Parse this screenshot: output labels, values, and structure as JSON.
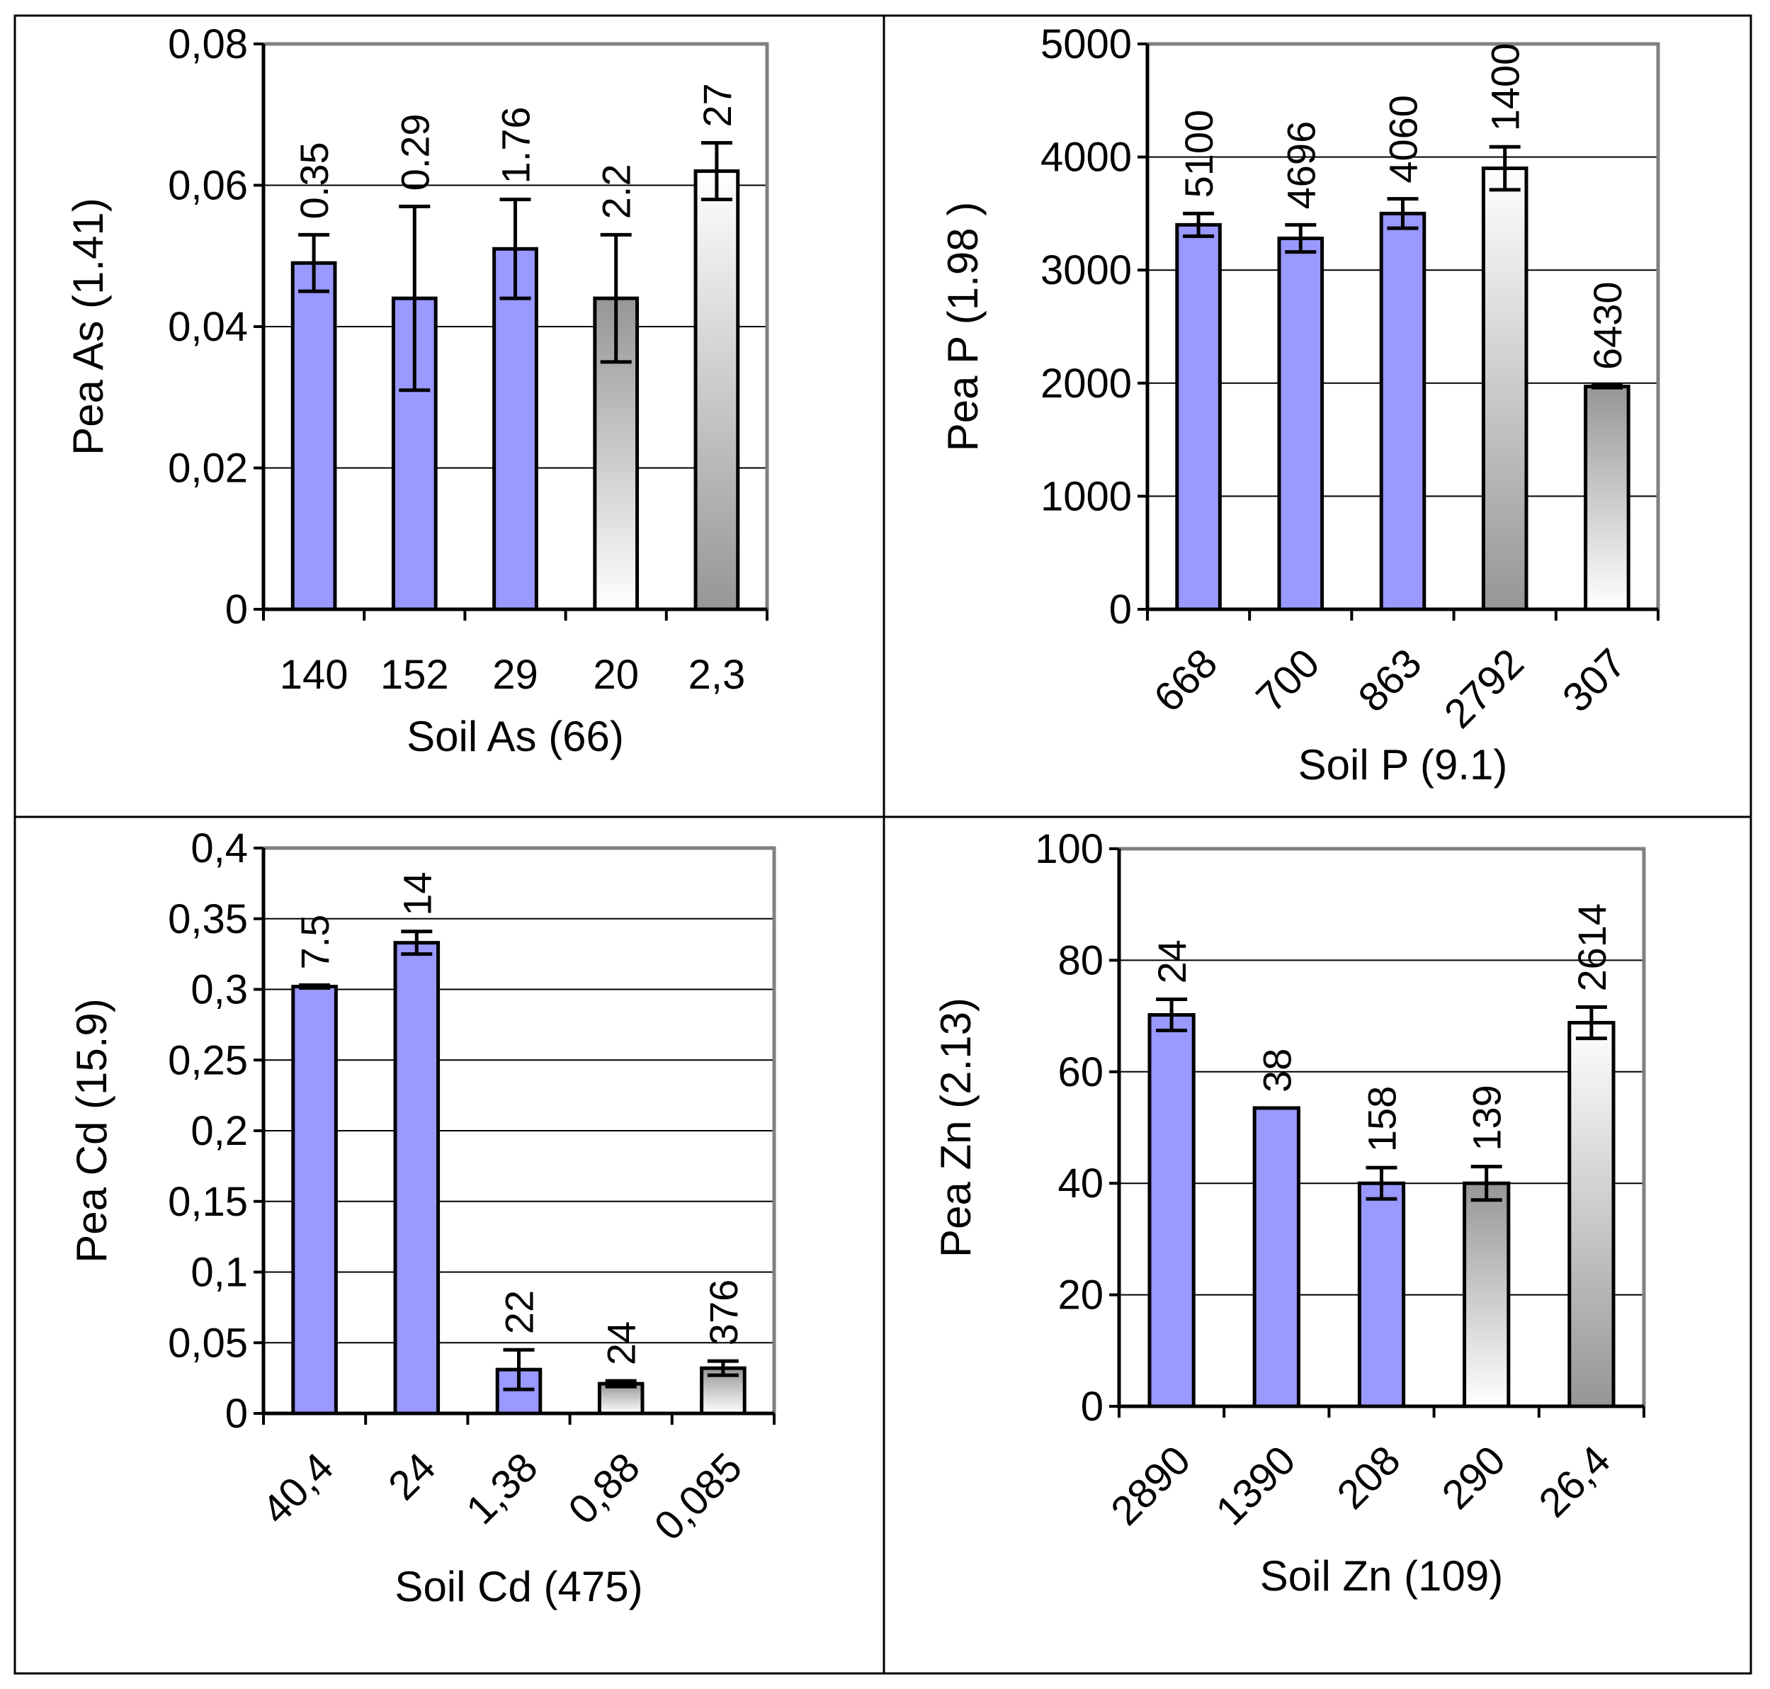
{
  "colors": {
    "blue_bar": "#9999ff",
    "grad_dark": "#969696",
    "grad_light": "#ffffff",
    "axis": "#000000",
    "plot_border": "#808080",
    "grid": "#000000",
    "frame": "#000000"
  },
  "chart_data": [
    {
      "type": "bar",
      "panel": "top-left",
      "title": "",
      "xlabel": "Soil As (66)",
      "ylabel": "Pea As (1.41)",
      "categories": [
        "140",
        "152",
        "29",
        "20",
        "2,3"
      ],
      "values": [
        0.049,
        0.044,
        0.051,
        0.044,
        0.062
      ],
      "error_plus_minus": [
        0.004,
        0.013,
        0.007,
        0.009,
        0.004
      ],
      "data_labels": [
        "0.35",
        "0.29",
        "1.76",
        "2.2",
        "27"
      ],
      "bar_fill": [
        "blue",
        "blue",
        "blue",
        "grad_up",
        "grad_down"
      ],
      "ylim": [
        0,
        0.08
      ],
      "yticks": [
        0,
        0.02,
        0.04,
        0.06,
        0.08
      ],
      "ytick_labels": [
        "0",
        "0,02",
        "0,04",
        "0,06",
        "0,08"
      ],
      "xtick_rotation": 0,
      "grid": true
    },
    {
      "type": "bar",
      "panel": "top-right",
      "title": "",
      "xlabel": "Soil P (9.1)",
      "ylabel": "Pea P (1.98 )",
      "categories": [
        "668",
        "700",
        "863",
        "2792",
        "307"
      ],
      "values": [
        3400,
        3280,
        3500,
        3900,
        1970
      ],
      "error_plus_minus": [
        100,
        120,
        130,
        190,
        10
      ],
      "data_labels": [
        "5100",
        "4696",
        "4060",
        "1400",
        "6430"
      ],
      "bar_fill": [
        "blue",
        "blue",
        "blue",
        "grad_down",
        "grad_up"
      ],
      "ylim": [
        0,
        5000
      ],
      "yticks": [
        0,
        1000,
        2000,
        3000,
        4000,
        5000
      ],
      "ytick_labels": [
        "0",
        "1000",
        "2000",
        "3000",
        "4000",
        "5000"
      ],
      "xtick_rotation": -45,
      "grid": true
    },
    {
      "type": "bar",
      "panel": "bottom-left",
      "title": "",
      "xlabel": "Soil Cd (475)",
      "ylabel": "Pea Cd (15.9)",
      "categories": [
        "40,4",
        "24",
        "1,38",
        "0,88",
        "0,085"
      ],
      "values": [
        0.302,
        0.333,
        0.031,
        0.021,
        0.032
      ],
      "error_plus_minus": [
        0.001,
        0.008,
        0.014,
        0.002,
        0.005
      ],
      "data_labels": [
        "7.5",
        "14",
        "22",
        "24",
        "376"
      ],
      "bar_fill": [
        "blue",
        "blue",
        "blue",
        "grad_up",
        "grad_up"
      ],
      "ylim": [
        0,
        0.4
      ],
      "yticks": [
        0,
        0.05,
        0.1,
        0.15,
        0.2,
        0.25,
        0.3,
        0.35,
        0.4
      ],
      "ytick_labels": [
        "0",
        "0,05",
        "0,1",
        "0,15",
        "0,2",
        "0,25",
        "0,3",
        "0,35",
        "0,4"
      ],
      "xtick_rotation": -45,
      "grid": true
    },
    {
      "type": "bar",
      "panel": "bottom-right",
      "title": "",
      "xlabel": "Soil Zn (109)",
      "ylabel": "Pea Zn (2.13)",
      "categories": [
        "2890",
        "1390",
        "208",
        "290",
        "26,4"
      ],
      "values": [
        70.2,
        53.5,
        40,
        40,
        68.8
      ],
      "error_plus_minus": [
        2.8,
        0,
        2.8,
        3,
        2.8
      ],
      "data_labels": [
        "24",
        "38",
        "158",
        "139",
        "2614"
      ],
      "bar_fill": [
        "blue",
        "blue",
        "blue",
        "grad_up",
        "grad_down"
      ],
      "ylim": [
        0,
        100
      ],
      "yticks": [
        0,
        20,
        40,
        60,
        80,
        100
      ],
      "ytick_labels": [
        "0",
        "20",
        "40",
        "60",
        "80",
        "100"
      ],
      "xtick_rotation": -45,
      "grid": true
    }
  ]
}
